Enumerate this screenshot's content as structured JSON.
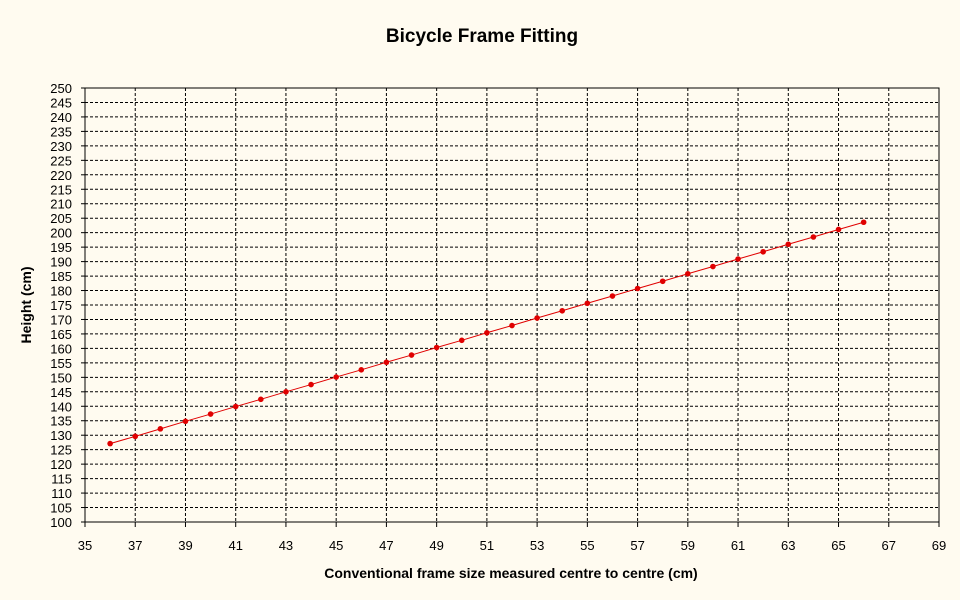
{
  "chart_data": {
    "type": "line",
    "title": "Bicycle Frame Fitting",
    "xlabel": "Conventional frame size measured centre to centre (cm)",
    "ylabel": "Height (cm)",
    "xlim": [
      35,
      69
    ],
    "ylim": [
      100,
      250
    ],
    "x_ticks": [
      35,
      37,
      39,
      41,
      43,
      45,
      47,
      49,
      51,
      53,
      55,
      57,
      59,
      61,
      63,
      65,
      67,
      69
    ],
    "y_ticks": [
      100,
      105,
      110,
      115,
      120,
      125,
      130,
      135,
      140,
      145,
      150,
      155,
      160,
      165,
      170,
      175,
      180,
      185,
      190,
      195,
      200,
      205,
      210,
      215,
      220,
      225,
      230,
      235,
      240,
      245,
      250
    ],
    "grid": true,
    "series": [
      {
        "color": "#e00000",
        "x": [
          36,
          37,
          38,
          39,
          40,
          41,
          42,
          43,
          44,
          45,
          46,
          47,
          48,
          49,
          50,
          51,
          52,
          53,
          54,
          55,
          56,
          57,
          58,
          59,
          60,
          61,
          62,
          63,
          64,
          65,
          66
        ],
        "y": [
          127.1,
          129.6,
          132.2,
          134.8,
          137.3,
          139.9,
          142.4,
          145.0,
          147.5,
          150.1,
          152.6,
          155.2,
          157.7,
          160.3,
          162.8,
          165.4,
          167.9,
          170.5,
          173.0,
          175.6,
          178.1,
          180.7,
          183.2,
          185.8,
          188.3,
          190.9,
          193.4,
          196.0,
          198.5,
          201.1,
          203.6
        ]
      }
    ]
  }
}
